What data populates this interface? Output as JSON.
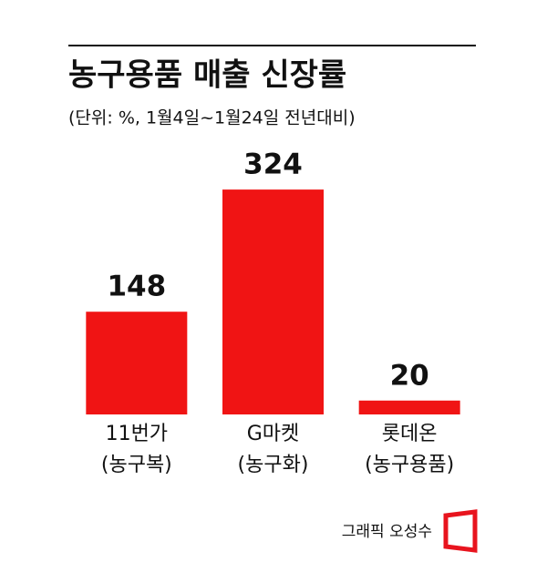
{
  "chart_data": {
    "type": "bar",
    "title": "농구용품 매출 신장률",
    "subtitle": "(단위: %, 1월4일~1월24일 전년대비)",
    "categories": [
      [
        "11번가",
        "(농구복)"
      ],
      [
        "G마켓",
        "(농구화)"
      ],
      [
        "롯데온",
        "(농구용품)"
      ]
    ],
    "values": [
      148,
      324,
      20
    ],
    "color": "#f01414",
    "credit": "그래픽 오성수"
  }
}
